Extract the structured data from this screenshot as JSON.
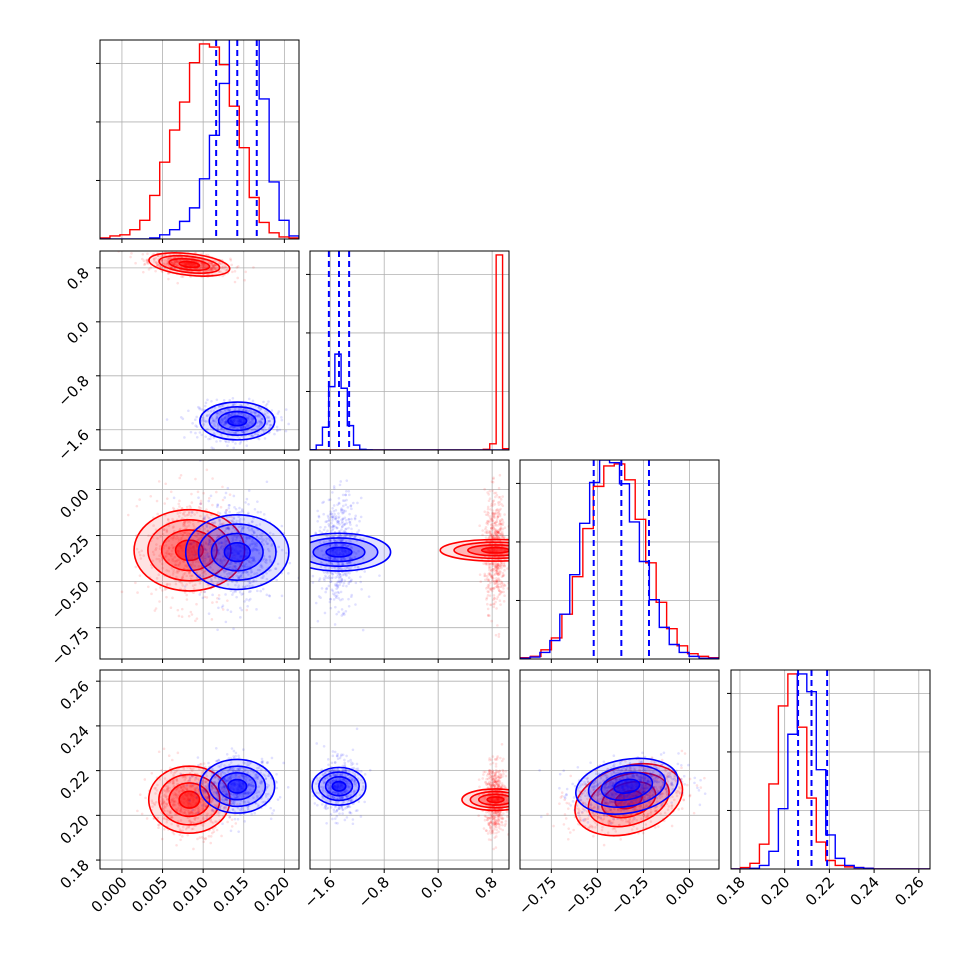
{
  "chart_data": {
    "type": "corner",
    "grid": true,
    "parameters": [
      {
        "ticks": [
          "0.000",
          "0.005",
          "0.010",
          "0.015",
          "0.020"
        ],
        "tick_values": [
          0.0,
          0.005,
          0.01,
          0.015,
          0.02
        ],
        "range": [
          -0.0027,
          0.0218
        ]
      },
      {
        "ticks": [
          "−1.6",
          "−0.8",
          "0.0",
          "0.8"
        ],
        "tick_values": [
          -1.6,
          -0.8,
          0.0,
          0.8
        ],
        "range": [
          -1.9,
          1.05
        ]
      },
      {
        "ticks": [
          "−0.75",
          "−0.50",
          "−0.25",
          "0.00"
        ],
        "tick_values": [
          -0.75,
          -0.5,
          -0.25,
          0.0
        ],
        "range": [
          -0.92,
          0.16
        ]
      },
      {
        "ticks": [
          "0.18",
          "0.20",
          "0.22",
          "0.24",
          "0.26"
        ],
        "tick_values": [
          0.18,
          0.2,
          0.22,
          0.24,
          0.26
        ],
        "range": [
          0.176,
          0.265
        ]
      }
    ],
    "series": [
      {
        "color": "#ff0000",
        "mean": [
          0.0083,
          0.85,
          -0.33,
          0.207
        ],
        "std": [
          0.0025,
          0.08,
          0.15,
          0.0075
        ],
        "corr": [
          [
            1,
            -0.4,
            0,
            0
          ],
          [
            -0.4,
            1,
            0,
            0
          ],
          [
            0,
            0,
            1,
            0.35
          ],
          [
            0,
            0,
            0.35,
            1
          ]
        ]
      },
      {
        "color": "#0000ff",
        "mean": [
          0.0142,
          -1.47,
          -0.34,
          0.213
        ],
        "std": [
          0.0023,
          0.14,
          0.14,
          0.006
        ],
        "corr": [
          [
            1,
            0,
            0,
            0
          ],
          [
            0,
            1,
            0,
            0
          ],
          [
            0,
            0,
            1,
            0.25
          ],
          [
            0,
            0,
            0.25,
            1
          ]
        ]
      }
    ],
    "quantile_lines": {
      "color": "#0000ff",
      "style": "dashed",
      "values": [
        [
          0.0116,
          0.0142,
          0.0166
        ],
        [
          -1.62,
          -1.47,
          -1.32
        ],
        [
          -0.52,
          -0.37,
          -0.22
        ],
        [
          0.206,
          0.212,
          0.219
        ]
      ]
    },
    "histograms": [
      {
        "bins": [
          -0.0027,
          0.0218
        ],
        "red": [
          1,
          3,
          4,
          9,
          18,
          42,
          74,
          105,
          132,
          170,
          188,
          185,
          168,
          128,
          88,
          40,
          16,
          6,
          2,
          1
        ],
        "blue": [
          0,
          0,
          0,
          0,
          0,
          1,
          4,
          9,
          17,
          30,
          58,
          100,
          150,
          210,
          220,
          210,
          135,
          55,
          18,
          3
        ]
      },
      {
        "bins": [
          -1.9,
          1.05
        ],
        "red": [
          0,
          0,
          0,
          0,
          0,
          0,
          0,
          0,
          0,
          0,
          0,
          0,
          0,
          0,
          0,
          0,
          0,
          0,
          0,
          0,
          0,
          0,
          0,
          0,
          0,
          0,
          0,
          4,
          38,
          1200.0,
          8
        ],
        "blue": [
          2,
          30,
          140,
          390,
          590,
          380,
          150,
          30,
          4,
          1,
          0,
          0,
          0,
          0,
          0,
          0,
          0,
          0,
          0,
          0,
          0,
          0,
          0,
          0,
          0,
          0,
          0,
          0,
          0,
          0,
          0,
          0
        ]
      },
      {
        "bins": [
          -0.92,
          0.16
        ],
        "red": [
          2,
          4,
          14,
          32,
          68,
          125,
          198,
          262,
          293,
          296,
          272,
          212,
          146,
          86,
          46,
          20,
          8,
          4,
          2
        ],
        "blue": [
          1,
          3,
          10,
          28,
          68,
          128,
          206,
          268,
          302,
          298,
          266,
          208,
          148,
          90,
          48,
          22,
          10,
          4,
          1,
          1
        ]
      },
      {
        "bins": [
          0.176,
          0.265
        ],
        "red": [
          0,
          2,
          8,
          35,
          120,
          230,
          275,
          200,
          100,
          38,
          12,
          5,
          3,
          2,
          1,
          0,
          0,
          0,
          0,
          0,
          0
        ],
        "blue": [
          0,
          0,
          1,
          5,
          25,
          85,
          190,
          275,
          250,
          140,
          48,
          15,
          5,
          2,
          1,
          0,
          0,
          0,
          0,
          0,
          0
        ]
      }
    ]
  }
}
